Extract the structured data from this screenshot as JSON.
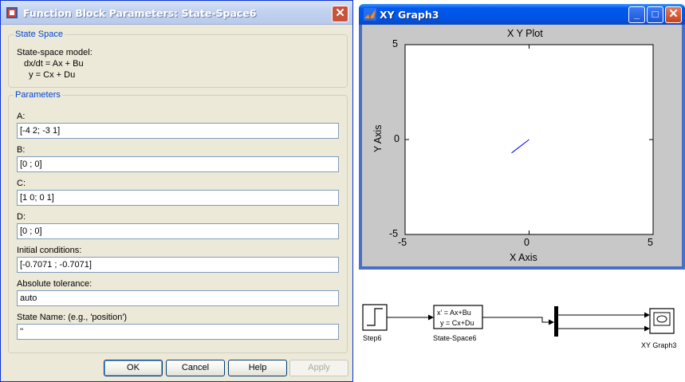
{
  "dialog": {
    "title": "Function Block Parameters: State-Space6",
    "close_glyph": "✕",
    "state_space_group": "State Space",
    "description_line1": "State-space model:",
    "description_line2": "dx/dt = Ax + Bu",
    "description_line3": "  y = Cx + Du",
    "parameters_group": "Parameters",
    "fields": [
      {
        "label": "A:",
        "value": "[-4 2; -3 1]"
      },
      {
        "label": "B:",
        "value": "[0 ; 0]"
      },
      {
        "label": "C:",
        "value": "[1 0; 0 1]"
      },
      {
        "label": "D:",
        "value": "[0 ; 0]"
      },
      {
        "label": "Initial conditions:",
        "value": "[-0.7071 ; -0.7071]"
      },
      {
        "label": "Absolute tolerance:",
        "value": "auto"
      },
      {
        "label": "State Name: (e.g., 'position')",
        "value": "''"
      }
    ],
    "buttons": {
      "ok": "OK",
      "cancel": "Cancel",
      "help": "Help",
      "apply": "Apply"
    }
  },
  "graph_window": {
    "title": "XY Graph3",
    "min_glyph": "_",
    "max_glyph": "□",
    "close_glyph": "✕"
  },
  "chart_data": {
    "type": "line",
    "title": "X Y Plot",
    "xlabel": "X Axis",
    "ylabel": "Y Axis",
    "xlim": [
      -5,
      5
    ],
    "ylim": [
      -5,
      5
    ],
    "xticks": [
      "-5",
      "0",
      "5"
    ],
    "yticks": [
      "5",
      "0",
      "-5"
    ],
    "series": [
      {
        "color": "#0000ff",
        "x": [
          -0.7071,
          -0.35,
          0.0
        ],
        "y": [
          -0.7071,
          -0.35,
          0.0
        ]
      }
    ]
  },
  "diagram": {
    "step_label": "Step6",
    "ss_line1": "x' = Ax+Bu",
    "ss_line2": "y = Cx+Du",
    "ss_label": "State-Space6",
    "xy_label": "XY Graph3"
  }
}
